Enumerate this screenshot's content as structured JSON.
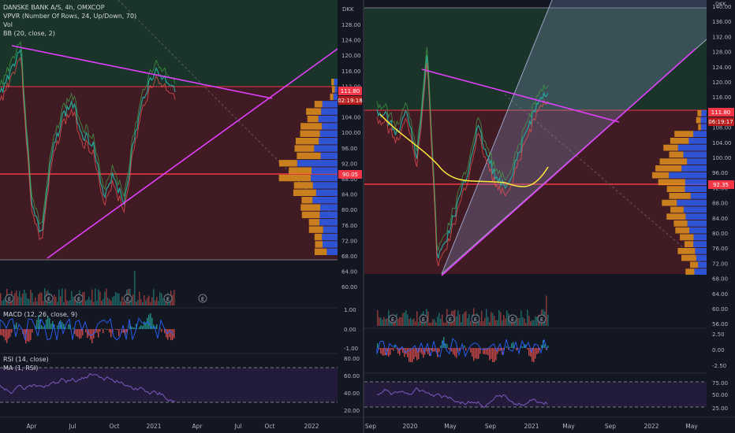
{
  "colors": {
    "background": "#131722",
    "grid": "#1e2230",
    "divider": "#2a2e39",
    "axis_text": "#b2b5be",
    "trendline": "#e040fb",
    "zone_green": "#1d3a2a",
    "zone_red": "#4a1c24",
    "poc_line": "#f23645",
    "vpvr_up": "#2962ff",
    "vpvr_down": "#f7a21b",
    "price_up": "#26a69a",
    "price_down": "#ef5350",
    "bb_basis": "#ff6d00",
    "ema_yellow": "#ffeb3b",
    "rsi_line": "#7e57c2",
    "macd_line": "#2962ff",
    "signal_line": "#ff6d00"
  },
  "left": {
    "legend": [
      "DANSKE BANK A/S, 4h, OMXCOP",
      "VPVR (Number Of Rows, 24, Up/Down, 70)",
      "Vol",
      "BB (20, close, 2)"
    ],
    "macd_label": "MACD (12, 26, close, 9)",
    "rsi_label": "RSI (14, close)",
    "rsi_ma_label": "MA (1, RSI)",
    "currency": "DKK",
    "price_ticks": [
      "128.00",
      "124.00",
      "120.00",
      "116.00",
      "112.00",
      "108.00",
      "104.00",
      "100.00",
      "96.00",
      "92.00",
      "88.00",
      "84.00",
      "80.00",
      "76.00",
      "72.00",
      "68.00",
      "64.00",
      "60.00"
    ],
    "macd_ticks": [
      "1.00",
      "0.00",
      "-1.00"
    ],
    "rsi_ticks": [
      "80.00",
      "60.00",
      "40.00",
      "20.00"
    ],
    "last_price": "111.80",
    "countdown": "02:19:18",
    "poc_price": "90.05",
    "time_labels": [
      "Apr",
      "Jul",
      "Oct",
      "2021",
      "Apr",
      "Jul",
      "Oct",
      "2022"
    ],
    "earnings_marker": "E"
  },
  "right": {
    "currency": "DKK",
    "price_ticks": [
      "140.00",
      "136.00",
      "132.00",
      "128.00",
      "124.00",
      "120.00",
      "116.00",
      "112.00",
      "108.00",
      "104.00",
      "100.00",
      "96.00",
      "92.00",
      "88.00",
      "84.00",
      "80.00",
      "76.00",
      "72.00",
      "68.00",
      "64.00",
      "60.00",
      "56.00"
    ],
    "macd_ticks": [
      "2.50",
      "0.00",
      "-2.50"
    ],
    "rsi_ticks": [
      "75.00",
      "50.00",
      "25.00"
    ],
    "last_price": "111.80",
    "countdown": "06:19:17",
    "poc_price": "92.35",
    "time_labels": [
      "Sep",
      "2020",
      "May",
      "Sep",
      "2021",
      "May",
      "Sep",
      "2022",
      "May"
    ],
    "earnings_marker": "E"
  }
}
